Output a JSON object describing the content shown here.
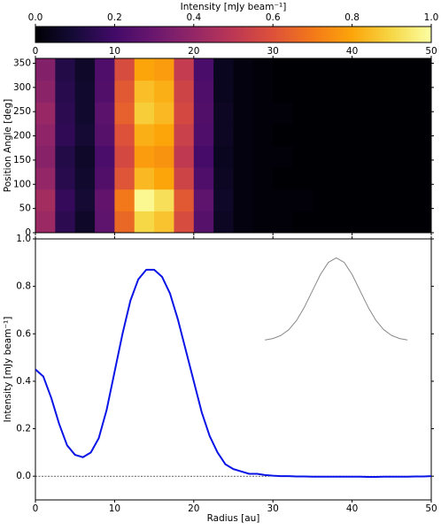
{
  "chart_data": [
    {
      "type": "heatmap",
      "ylabel": "Position Angle [deg]",
      "colormap": "inferno",
      "colorbar": {
        "label": "Intensity [mJy beam⁻¹]",
        "lim": [
          0,
          1
        ],
        "ticks": [
          {
            "value": 0,
            "label": "0.0"
          },
          0.2,
          0.4,
          0.6,
          0.8,
          {
            "value": 1,
            "label": "1.0"
          }
        ]
      },
      "xlim": [
        0,
        50
      ],
      "ylim": [
        0,
        360
      ],
      "xticks": [
        0,
        10,
        20,
        30,
        40,
        50
      ],
      "yticks": [
        0,
        50,
        100,
        150,
        200,
        250,
        300,
        350
      ],
      "x_bins": [
        0,
        2.5,
        5,
        7.5,
        10,
        12.5,
        15,
        17.5,
        20,
        22.5,
        25,
        27.5,
        30,
        32.5,
        35,
        37.5,
        40,
        42.5,
        45,
        47.5,
        50
      ],
      "y_bins": [
        0,
        45,
        90,
        135,
        180,
        225,
        270,
        315,
        360
      ],
      "z": [
        [
          0.42,
          0.15,
          0.07,
          0.27,
          0.66,
          0.9,
          0.86,
          0.58,
          0.25,
          0.06,
          0.02,
          0.01,
          0.01,
          0,
          0,
          0,
          0,
          0,
          0,
          0
        ],
        [
          0.44,
          0.17,
          0.09,
          0.28,
          0.7,
          0.98,
          0.92,
          0.62,
          0.27,
          0.07,
          0.02,
          0.01,
          0.01,
          0.01,
          0,
          0,
          0,
          0,
          0,
          0
        ],
        [
          0.4,
          0.14,
          0.08,
          0.24,
          0.61,
          0.84,
          0.8,
          0.55,
          0.23,
          0.06,
          0.02,
          0.01,
          0,
          0,
          0,
          0,
          0,
          0,
          0,
          0
        ],
        [
          0.37,
          0.13,
          0.07,
          0.22,
          0.57,
          0.78,
          0.76,
          0.51,
          0.21,
          0.05,
          0.02,
          0.01,
          0.01,
          0,
          0,
          0,
          0,
          0,
          0,
          0
        ],
        [
          0.39,
          0.16,
          0.09,
          0.25,
          0.6,
          0.82,
          0.8,
          0.54,
          0.23,
          0.06,
          0.02,
          0.01,
          0,
          0,
          0,
          0,
          0,
          0,
          0,
          0
        ],
        [
          0.41,
          0.15,
          0.08,
          0.26,
          0.64,
          0.88,
          0.84,
          0.57,
          0.24,
          0.06,
          0.02,
          0.01,
          0.01,
          0,
          0,
          0,
          0,
          0,
          0,
          0
        ],
        [
          0.38,
          0.14,
          0.08,
          0.24,
          0.62,
          0.85,
          0.82,
          0.55,
          0.23,
          0.05,
          0.02,
          0.01,
          0,
          0,
          0,
          0,
          0,
          0,
          0,
          0
        ],
        [
          0.36,
          0.13,
          0.07,
          0.23,
          0.58,
          0.8,
          0.78,
          0.52,
          0.22,
          0.05,
          0.02,
          0.01,
          0,
          0,
          0,
          0,
          0,
          0,
          0,
          0
        ]
      ]
    },
    {
      "type": "line",
      "xlabel": "Radius [au]",
      "ylabel": "Intensity [mJy beam⁻¹]",
      "xlim": [
        0,
        50
      ],
      "ylim": [
        -0.1,
        1.0
      ],
      "xticks": [
        0,
        10,
        20,
        30,
        40,
        50
      ],
      "yticks": [
        {
          "value": 0,
          "label": "0.0"
        },
        0.2,
        0.4,
        0.6,
        0.8,
        {
          "value": 1,
          "label": "1.0"
        }
      ],
      "hline": 0,
      "series": [
        {
          "color": "#0a14e6",
          "x": [
            0,
            1,
            2,
            3,
            4,
            5,
            6,
            7,
            8,
            9,
            10,
            11,
            12,
            13,
            14,
            15,
            16,
            17,
            18,
            19,
            20,
            21,
            22,
            23,
            24,
            25,
            26,
            27,
            28,
            29,
            30,
            31,
            32,
            33,
            34,
            35,
            36,
            37,
            38,
            39,
            40,
            41,
            42,
            43,
            44,
            45,
            46,
            47,
            48,
            49,
            50
          ],
          "values": [
            0.45,
            0.42,
            0.33,
            0.22,
            0.13,
            0.09,
            0.08,
            0.1,
            0.16,
            0.28,
            0.44,
            0.6,
            0.74,
            0.83,
            0.87,
            0.87,
            0.84,
            0.77,
            0.66,
            0.53,
            0.4,
            0.27,
            0.17,
            0.1,
            0.05,
            0.03,
            0.02,
            0.01,
            0.01,
            0.005,
            0.002,
            0,
            0,
            -0.001,
            -0.001,
            -0.002,
            -0.002,
            -0.002,
            -0.002,
            -0.002,
            -0.002,
            -0.002,
            -0.003,
            -0.003,
            -0.002,
            -0.002,
            -0.002,
            -0.002,
            -0.001,
            -0.001,
            0
          ]
        },
        {
          "color": "#888888",
          "x": [
            29,
            30,
            31,
            32,
            33,
            34,
            35,
            36,
            37,
            38,
            39,
            40,
            41,
            42,
            43,
            44,
            45,
            46,
            47
          ],
          "values": [
            0.574,
            0.58,
            0.593,
            0.617,
            0.657,
            0.714,
            0.782,
            0.85,
            0.901,
            0.92,
            0.901,
            0.85,
            0.782,
            0.714,
            0.657,
            0.617,
            0.593,
            0.58,
            0.574
          ]
        }
      ]
    }
  ]
}
